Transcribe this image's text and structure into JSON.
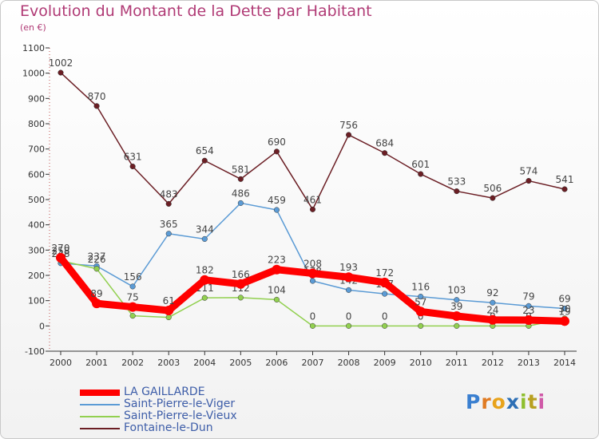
{
  "header": {
    "title": "Evolution du Montant de la Dette par Habitant",
    "subtitle": "(en €)"
  },
  "brand": {
    "logo_letters": [
      "P",
      "r",
      "o",
      "x",
      "i",
      "t",
      "i"
    ],
    "logo_colors": [
      "#3a7fd0",
      "#e07b22",
      "#e8a31b",
      "#2d6fb5",
      "#8fbf2f",
      "#b8a020",
      "#d05aa8"
    ]
  },
  "chart_data": {
    "type": "line",
    "x": [
      2000,
      2001,
      2002,
      2003,
      2004,
      2005,
      2006,
      2007,
      2008,
      2009,
      2010,
      2011,
      2012,
      2013,
      2014
    ],
    "ylim": [
      -100,
      1100
    ],
    "yticks": [
      -100,
      0,
      100,
      200,
      300,
      400,
      500,
      600,
      700,
      800,
      900,
      1000,
      1100
    ],
    "grid": false,
    "legend_position": "bottom-left",
    "series": [
      {
        "name": "Fontaine-le-Dun",
        "color": "#6b1e24",
        "values": [
          1002,
          870,
          631,
          483,
          654,
          581,
          690,
          461,
          756,
          684,
          601,
          533,
          506,
          574,
          541
        ],
        "labels": [
          "1002",
          "870",
          "631",
          "483",
          "654",
          "581",
          "690",
          "461",
          "756",
          "684",
          "601",
          "533",
          "506",
          "574",
          "541"
        ]
      },
      {
        "name": "Saint-Pierre-le-Viger",
        "color": "#5b9bd5",
        "values": [
          248,
          237,
          156,
          365,
          344,
          486,
          459,
          178,
          142,
          127,
          116,
          103,
          92,
          79,
          69
        ],
        "labels": [
          "248",
          "237",
          "156",
          "365",
          "344",
          "486",
          "459",
          "178",
          "142",
          "127",
          "116",
          "103",
          "92",
          "79",
          "69"
        ]
      },
      {
        "name": "Saint-Pierre-le-Vieux",
        "color": "#92d050",
        "values": [
          258,
          226,
          40,
          34,
          111,
          112,
          104,
          0,
          0,
          0,
          0,
          0,
          0,
          0,
          30
        ],
        "labels": [
          "258",
          "226",
          "",
          "",
          "111",
          "112",
          "104",
          "0",
          "0",
          "0",
          "0",
          "0",
          "0",
          "0",
          "30"
        ]
      },
      {
        "name": "LA GAILLARDE",
        "color": "#ff0000",
        "values": [
          270,
          89,
          75,
          61,
          182,
          166,
          223,
          208,
          193,
          172,
          57,
          39,
          24,
          23,
          19
        ],
        "labels": [
          "270",
          "89",
          "75",
          "61",
          "182",
          "166",
          "223",
          "208",
          "193",
          "172",
          "57",
          "39",
          "24",
          "23",
          "19"
        ]
      }
    ],
    "legend_order": [
      "LA GAILLARDE",
      "Saint-Pierre-le-Viger",
      "Saint-Pierre-le-Vieux",
      "Fontaine-le-Dun"
    ]
  }
}
